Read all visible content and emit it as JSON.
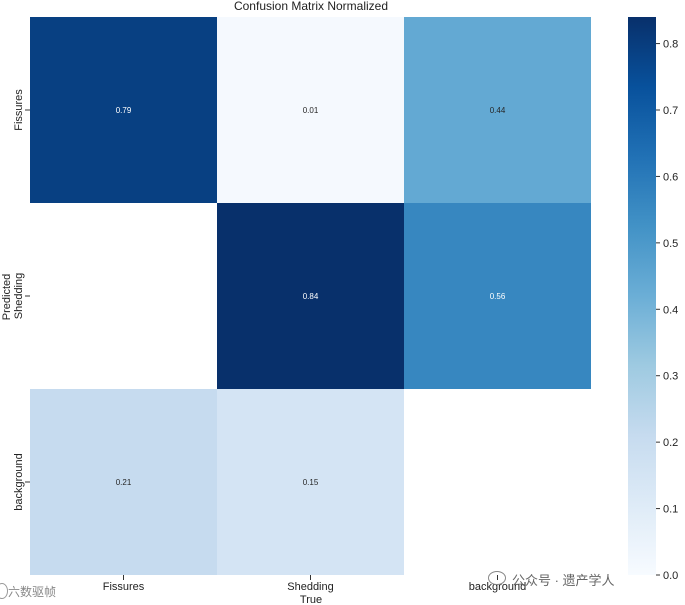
{
  "chart_data": {
    "type": "heatmap",
    "title": "Confusion Matrix Normalized",
    "xlabel": "True",
    "ylabel": "Predicted",
    "x_categories": [
      "Fissures",
      "Shedding",
      "background"
    ],
    "y_categories": [
      "Fissures",
      "Shedding",
      "background"
    ],
    "values": [
      [
        0.79,
        0.01,
        0.44
      ],
      [
        null,
        0.84,
        0.56
      ],
      [
        0.21,
        0.15,
        null
      ]
    ],
    "colorbar": {
      "range": [
        0.0,
        0.84
      ],
      "ticks": [
        0.0,
        0.1,
        0.2,
        0.3,
        0.4,
        0.5,
        0.6,
        0.7,
        0.8
      ],
      "colormap": "Blues"
    }
  },
  "watermark": {
    "left": "六数驱帧",
    "right": "公众号 · 遗产学人"
  }
}
